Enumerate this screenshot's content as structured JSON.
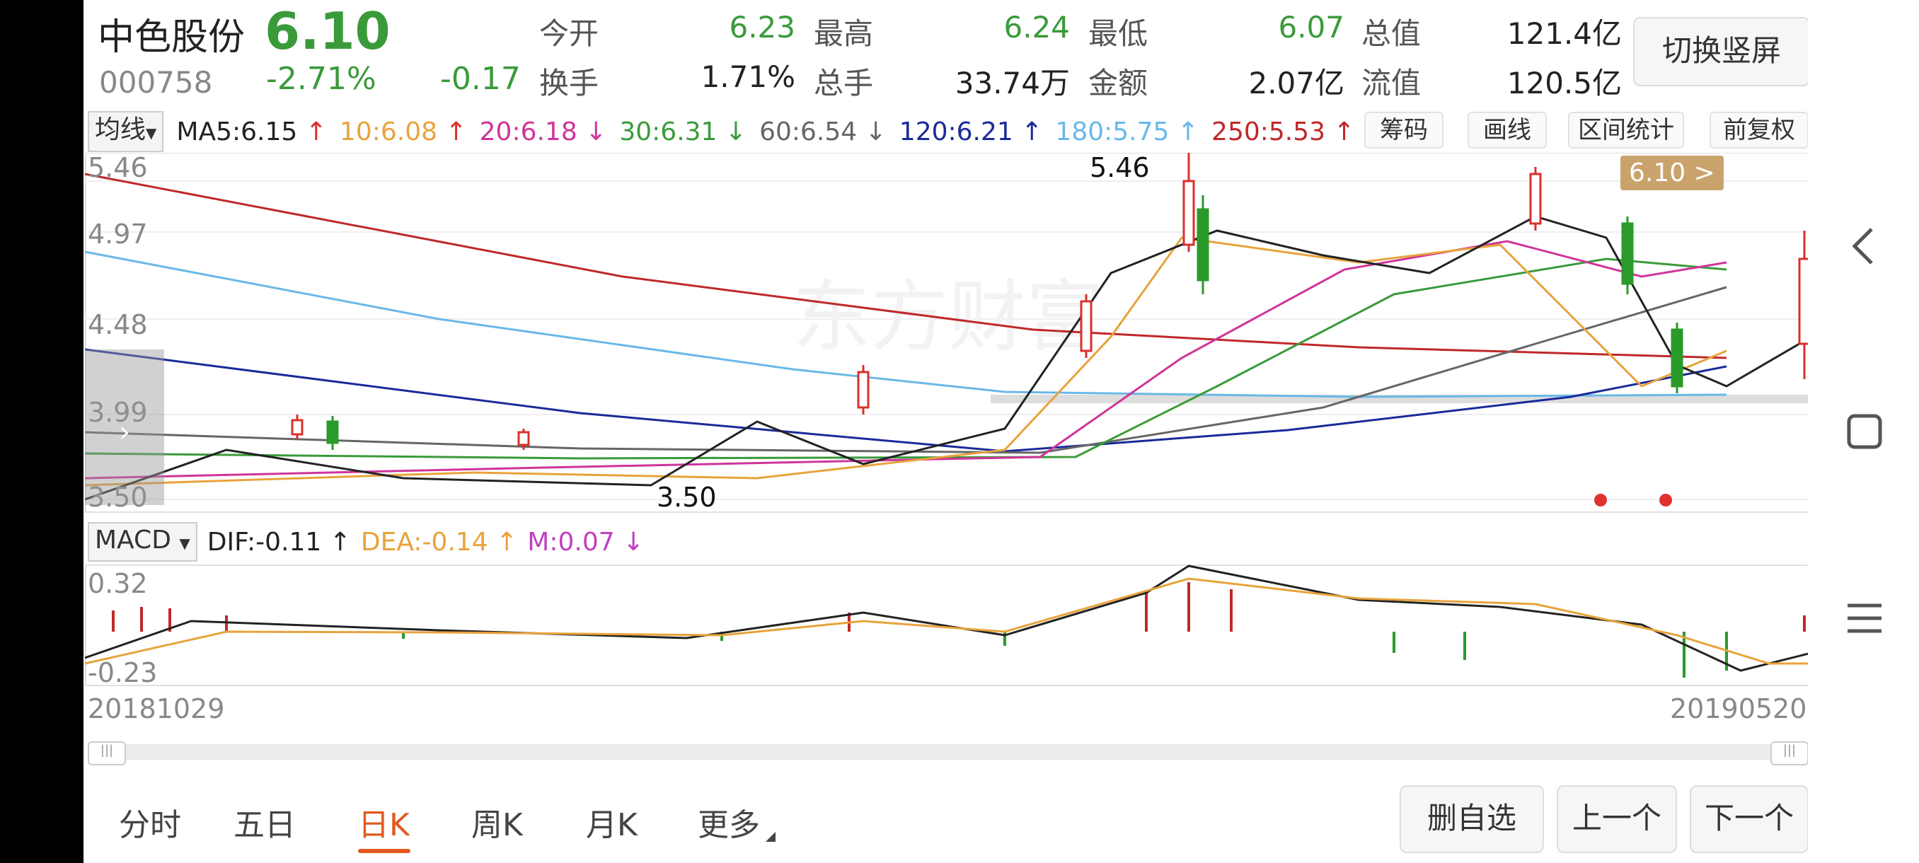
{
  "stock": {
    "name": "中色股份",
    "code": "000758",
    "price": "6.10",
    "change_pct": "-2.71%",
    "change": "-0.17",
    "switch_button": "切换竖屏"
  },
  "quote": [
    {
      "label": "今开",
      "value": "6.23",
      "color": "#3a9a3a"
    },
    {
      "label": "最高",
      "value": "6.24",
      "color": "#3a9a3a"
    },
    {
      "label": "最低",
      "value": "6.07",
      "color": "#3a9a3a"
    },
    {
      "label": "总值",
      "value": "121.4亿",
      "color": "#222222"
    },
    {
      "label": "换手",
      "value": "1.71%",
      "color": "#222222"
    },
    {
      "label": "总手",
      "value": "33.74万",
      "color": "#222222"
    },
    {
      "label": "金额",
      "value": "2.07亿",
      "color": "#222222"
    },
    {
      "label": "流值",
      "value": "120.5亿",
      "color": "#222222"
    }
  ],
  "ma_bar": {
    "selector": "均线",
    "items": [
      {
        "text": "MA5:6.15",
        "arrow": "↑",
        "color": "#222222"
      },
      {
        "text": "10:6.08",
        "arrow": "↑",
        "color": "#e8a33c"
      },
      {
        "text": "20:6.18",
        "arrow": "↓",
        "color": "#d0349a"
      },
      {
        "text": "30:6.31",
        "arrow": "↓",
        "color": "#3a9a3a"
      },
      {
        "text": "60:6.54",
        "arrow": "↓",
        "color": "#666666"
      },
      {
        "text": "120:6.21",
        "arrow": "↑",
        "color": "#1a2a9a"
      },
      {
        "text": "180:5.75",
        "arrow": "↑",
        "color": "#6ab8e8"
      },
      {
        "text": "250:5.53",
        "arrow": "↑",
        "color": "#c0282a"
      }
    ],
    "tools": [
      "筹码",
      "画线",
      "区间统计",
      "前复权"
    ]
  },
  "kline": {
    "y_labels": [
      "5.46",
      "4.97",
      "4.48",
      "3.99",
      "3.50"
    ],
    "high_label": "5.46",
    "low_label": "3.50",
    "current_price_tag": "6.10 >",
    "watermark": "东方财富",
    "colors": {
      "up": "#d9302c",
      "down": "#2a9a2a",
      "ma5": "#222222",
      "ma10": "#e8a33c",
      "ma20": "#d0349a",
      "ma30": "#3a9a3a",
      "ma60": "#666666",
      "ma120": "#1a2a9a",
      "ma180": "#6ab8e8",
      "ma250": "#c0282a"
    }
  },
  "macd_bar": {
    "selector": "MACD",
    "items": [
      {
        "text": "DIF:-0.11",
        "arrow": "↑",
        "color": "#222222"
      },
      {
        "text": "DEA:-0.14",
        "arrow": "↑",
        "color": "#e8a33c"
      },
      {
        "text": "M:0.07",
        "arrow": "↓",
        "color": "#c040c0"
      }
    ],
    "y_labels": [
      "0.32",
      "-0.23"
    ]
  },
  "dates": {
    "start": "20181029",
    "end": "20190520"
  },
  "tabs": [
    "分时",
    "五日",
    "日K",
    "周K",
    "月K",
    "更多"
  ],
  "active_tab": "日K",
  "actions": [
    "删自选",
    "上一个",
    "下一个"
  ],
  "nav_icons": [
    "back-icon",
    "recent-apps-icon",
    "menu-icon"
  ]
}
